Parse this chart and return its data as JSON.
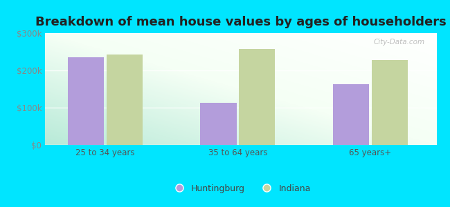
{
  "title": "Breakdown of mean house values by ages of householders",
  "categories": [
    "25 to 34 years",
    "35 to 64 years",
    "65 years+"
  ],
  "huntingburg_values": [
    235000,
    113000,
    163000
  ],
  "indiana_values": [
    242000,
    257000,
    228000
  ],
  "bar_color_huntingburg": "#b39ddb",
  "bar_color_indiana": "#c5d5a0",
  "background_color": "#00e5ff",
  "ylim": [
    0,
    300000
  ],
  "yticks": [
    0,
    100000,
    200000,
    300000
  ],
  "ytick_labels": [
    "$0",
    "$100k",
    "$200k",
    "$300k"
  ],
  "legend_huntingburg": "Huntingburg",
  "legend_indiana": "Indiana",
  "title_fontsize": 13,
  "tick_fontsize": 8.5,
  "legend_fontsize": 9,
  "bar_width": 0.3,
  "watermark": "City-Data.com"
}
